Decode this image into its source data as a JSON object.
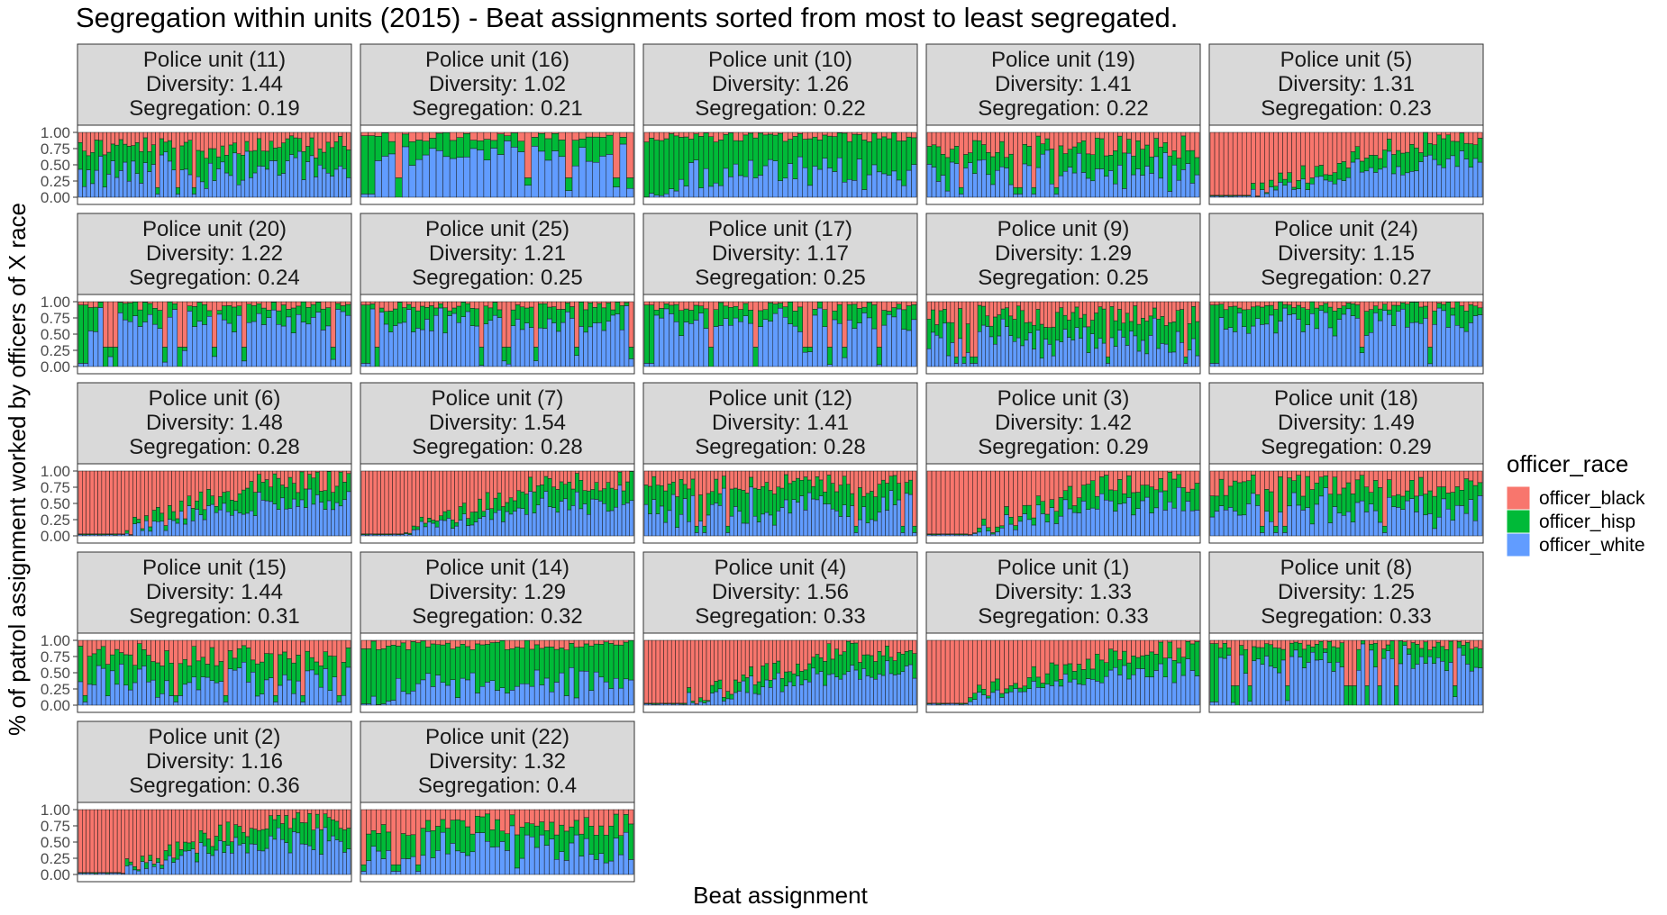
{
  "chart_data": {
    "type": "bar",
    "stacked": true,
    "title": "Segregation within units (2015) - Beat assignments sorted from most to least segregated.",
    "xlabel": "Beat assignment",
    "ylabel": "% of patrol assignment worked by officers of X race",
    "ylim": [
      0,
      1
    ],
    "yticks": [
      "0.00",
      "0.25",
      "0.50",
      "0.75",
      "1.00"
    ],
    "legend": {
      "title": "officer_race",
      "placement": "right",
      "entries": [
        {
          "name": "officer_black",
          "color": "#F8766D"
        },
        {
          "name": "officer_hisp",
          "color": "#00BA38"
        },
        {
          "name": "officer_white",
          "color": "#619CFF"
        }
      ]
    },
    "panels": [
      {
        "label": "Police unit (11)",
        "diversity": "Diversity: 1.44",
        "segregation": "Segregation: 0.19",
        "bars": 67,
        "pattern": "blue-green-red"
      },
      {
        "label": "Police unit (16)",
        "diversity": "Diversity: 1.02",
        "segregation": "Segregation: 0.21",
        "bars": 40,
        "pattern": "blue"
      },
      {
        "label": "Police unit (10)",
        "diversity": "Diversity: 1.26",
        "segregation": "Segregation: 0.22",
        "bars": 55,
        "pattern": "green"
      },
      {
        "label": "Police unit (19)",
        "diversity": "Diversity: 1.41",
        "segregation": "Segregation: 0.22",
        "bars": 60,
        "pattern": "blue-green-red"
      },
      {
        "label": "Police unit (5)",
        "diversity": "Diversity: 1.31",
        "segregation": "Segregation: 0.23",
        "bars": 60,
        "pattern": "red-first"
      },
      {
        "label": "Police unit (20)",
        "diversity": "Diversity: 1.22",
        "segregation": "Segregation: 0.24",
        "bars": 55,
        "pattern": "blue"
      },
      {
        "label": "Police unit (25)",
        "diversity": "Diversity: 1.21",
        "segregation": "Segregation: 0.25",
        "bars": 60,
        "pattern": "blue"
      },
      {
        "label": "Police unit (17)",
        "diversity": "Diversity: 1.17",
        "segregation": "Segregation: 0.25",
        "bars": 55,
        "pattern": "blue"
      },
      {
        "label": "Police unit (9)",
        "diversity": "Diversity: 1.29",
        "segregation": "Segregation: 0.25",
        "bars": 70,
        "pattern": "blue-green-red"
      },
      {
        "label": "Police unit (24)",
        "diversity": "Diversity: 1.15",
        "segregation": "Segregation: 0.27",
        "bars": 60,
        "pattern": "blue"
      },
      {
        "label": "Police unit (6)",
        "diversity": "Diversity: 1.48",
        "segregation": "Segregation: 0.28",
        "bars": 70,
        "pattern": "red-first"
      },
      {
        "label": "Police unit (7)",
        "diversity": "Diversity: 1.54",
        "segregation": "Segregation: 0.28",
        "bars": 70,
        "pattern": "red-first"
      },
      {
        "label": "Police unit (12)",
        "diversity": "Diversity: 1.41",
        "segregation": "Segregation: 0.28",
        "bars": 70,
        "pattern": "blue-green-red"
      },
      {
        "label": "Police unit (3)",
        "diversity": "Diversity: 1.42",
        "segregation": "Segregation: 0.29",
        "bars": 60,
        "pattern": "red-first"
      },
      {
        "label": "Police unit (18)",
        "diversity": "Diversity: 1.49",
        "segregation": "Segregation: 0.29",
        "bars": 60,
        "pattern": "blue-green-red"
      },
      {
        "label": "Police unit (15)",
        "diversity": "Diversity: 1.44",
        "segregation": "Segregation: 0.31",
        "bars": 60,
        "pattern": "blue-green-red"
      },
      {
        "label": "Police unit (14)",
        "diversity": "Diversity: 1.29",
        "segregation": "Segregation: 0.32",
        "bars": 55,
        "pattern": "green"
      },
      {
        "label": "Police unit (4)",
        "diversity": "Diversity: 1.56",
        "segregation": "Segregation: 0.33",
        "bars": 70,
        "pattern": "red-first"
      },
      {
        "label": "Police unit (1)",
        "diversity": "Diversity: 1.33",
        "segregation": "Segregation: 0.33",
        "bars": 60,
        "pattern": "red-first"
      },
      {
        "label": "Police unit (8)",
        "diversity": "Diversity: 1.25",
        "segregation": "Segregation: 0.33",
        "bars": 65,
        "pattern": "blue"
      },
      {
        "label": "Police unit (2)",
        "diversity": "Diversity: 1.16",
        "segregation": "Segregation: 0.36",
        "bars": 70,
        "pattern": "red-first"
      },
      {
        "label": "Police unit (22)",
        "diversity": "Diversity: 1.32",
        "segregation": "Segregation: 0.4",
        "bars": 55,
        "pattern": "blue-green-red"
      }
    ]
  }
}
